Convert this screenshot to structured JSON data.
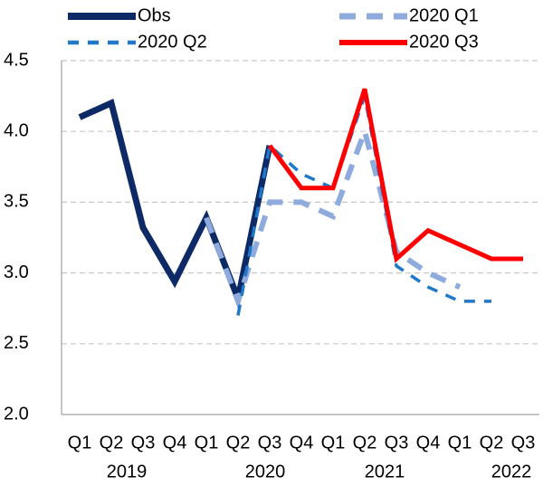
{
  "chart_data": {
    "type": "line",
    "categories": [
      "Q1",
      "Q2",
      "Q3",
      "Q4",
      "Q1",
      "Q2",
      "Q3",
      "Q4",
      "Q1",
      "Q2",
      "Q3",
      "Q4",
      "Q1",
      "Q2",
      "Q3"
    ],
    "x_group_labels": [
      "2019",
      "2020",
      "2021",
      "2022"
    ],
    "ylim": [
      2.0,
      4.5
    ],
    "yticks": [
      {
        "value": 2.0,
        "label": "2.0"
      },
      {
        "value": 2.5,
        "label": "2.5"
      },
      {
        "value": 3.0,
        "label": "3.0"
      },
      {
        "value": 3.5,
        "label": "3.5"
      },
      {
        "value": 4.0,
        "label": "4.0"
      },
      {
        "value": 4.5,
        "label": "4.5"
      }
    ],
    "grid": true,
    "series": [
      {
        "name": "Obs",
        "color": "#0d2a66",
        "line_style": "solid",
        "values": [
          4.1,
          4.2,
          3.32,
          2.94,
          3.39,
          2.82,
          3.9,
          null,
          null,
          null,
          null,
          null,
          null,
          null,
          null
        ]
      },
      {
        "name": "2020 Q1",
        "color": "#8faadc",
        "line_style": "dashed",
        "values": [
          null,
          null,
          null,
          null,
          3.39,
          2.8,
          3.5,
          3.5,
          3.4,
          4.0,
          3.15,
          3.0,
          2.9,
          null,
          null
        ]
      },
      {
        "name": "2020 Q2",
        "color": "#1f78c8",
        "line_style": "dashed",
        "values": [
          null,
          null,
          null,
          null,
          null,
          2.7,
          3.9,
          3.7,
          3.6,
          4.25,
          3.05,
          2.9,
          2.8,
          2.8,
          null
        ]
      },
      {
        "name": "2020 Q3",
        "color": "#ff0000",
        "line_style": "solid",
        "values": [
          null,
          null,
          null,
          null,
          null,
          null,
          3.9,
          3.6,
          3.6,
          4.3,
          3.1,
          3.3,
          3.2,
          3.1,
          3.1
        ]
      }
    ]
  }
}
